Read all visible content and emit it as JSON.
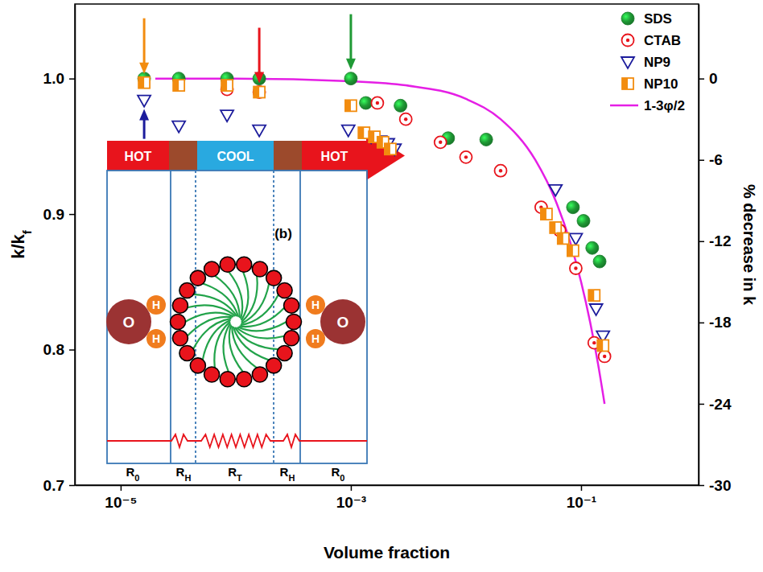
{
  "chart_data": {
    "type": "scatter",
    "xlabel": "Volume fraction",
    "ylabel": "k/kf",
    "y2label": "% decrease in k",
    "log": "x",
    "grid": false,
    "legend": "top-right",
    "xlim": [
      4e-06,
      1.05
    ],
    "xticks": [
      {
        "value": 1e-05,
        "label": "10⁻⁵"
      },
      {
        "value": 0.001,
        "label": "10⁻³"
      },
      {
        "value": 0.1,
        "label": "10⁻¹"
      }
    ],
    "ylim": [
      0.7,
      1.055
    ],
    "yticks": [
      0.7,
      0.8,
      0.9,
      {
        "value": 1,
        "label": "1.0"
      }
    ],
    "y2lim": [
      -30,
      5.5
    ],
    "y2ticks": [
      -30,
      -24,
      -18,
      -12,
      -6,
      0
    ],
    "series": [
      {
        "name": "SDS",
        "color": "#1f9a35",
        "marker": "circle",
        "x": [
          1.6e-05,
          3.2e-05,
          8.4e-05,
          0.00016,
          0.001,
          0.00135,
          0.0027,
          0.007,
          0.015,
          0.085,
          0.105,
          0.125,
          0.145
        ],
        "values": [
          1.0,
          1.0,
          1.0,
          1.0,
          1.0,
          0.982,
          0.98,
          0.956,
          0.955,
          0.905,
          0.895,
          0.875,
          0.865
        ]
      },
      {
        "name": "CTAB",
        "color": "#e8141c",
        "marker": "circle-dot",
        "x": [
          8.4e-05,
          0.00016,
          0.0017,
          0.003,
          0.006,
          0.01,
          0.02,
          0.045,
          0.065,
          0.09,
          0.13,
          0.16
        ],
        "values": [
          0.992,
          0.99,
          0.982,
          0.97,
          0.953,
          0.942,
          0.932,
          0.905,
          0.888,
          0.86,
          0.805,
          0.795
        ]
      },
      {
        "name": "NP9",
        "color": "#1c1c9c",
        "marker": "triangle-down",
        "x": [
          1.6e-05,
          3.2e-05,
          8.4e-05,
          0.00016,
          0.00095,
          0.0015,
          0.0018,
          0.0021,
          0.0024,
          0.06,
          0.09,
          0.135,
          0.155
        ],
        "values": [
          0.984,
          0.965,
          0.973,
          0.962,
          0.962,
          0.957,
          0.954,
          0.952,
          0.948,
          0.918,
          0.882,
          0.83,
          0.81
        ]
      },
      {
        "name": "NP10",
        "color": "#f28c0f",
        "marker": "square-half",
        "x": [
          1.6e-05,
          3.2e-05,
          8.4e-05,
          0.00016,
          0.001,
          0.0013,
          0.0016,
          0.0019,
          0.0022,
          0.05,
          0.06,
          0.07,
          0.085,
          0.13,
          0.155
        ],
        "values": [
          0.997,
          0.995,
          0.995,
          0.99,
          0.98,
          0.96,
          0.957,
          0.953,
          0.948,
          0.9,
          0.89,
          0.882,
          0.873,
          0.84,
          0.803
        ]
      },
      {
        "name": "1-3φ/2",
        "type": "line",
        "color": "#e51fe5",
        "line_style": "solid",
        "x": [
          2e-05,
          0.0001,
          0.001,
          0.003,
          0.01,
          0.02,
          0.04,
          0.06,
          0.08,
          0.1,
          0.12,
          0.14,
          0.16
        ],
        "values": [
          1.0,
          1.0,
          0.998,
          0.995,
          0.985,
          0.97,
          0.94,
          0.91,
          0.88,
          0.85,
          0.82,
          0.79,
          0.76
        ]
      }
    ],
    "annotations": {
      "panel": "(b)",
      "bands": [
        "HOT",
        "COOL",
        "HOT"
      ],
      "atoms": [
        "O",
        "H"
      ],
      "resistances": [
        "R0",
        "RH",
        "RT",
        "RH",
        "R0"
      ]
    }
  }
}
